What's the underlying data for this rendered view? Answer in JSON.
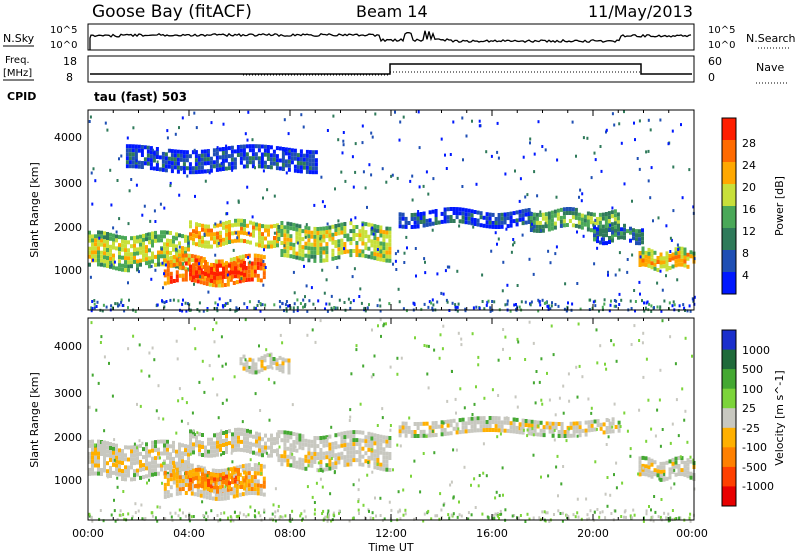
{
  "header": {
    "station": "Goose Bay (fitACF)",
    "beam": "Beam 14",
    "date": "11/May/2013"
  },
  "strips": {
    "nsky_label": "N.Sky",
    "nsky_ticks": [
      "10^5",
      "10^0"
    ],
    "nsearch_label": "N.Search",
    "nsearch_ticks": [
      "10^5",
      "10^0"
    ],
    "freq_label_1": "Freq.",
    "freq_label_2": "[MHz]",
    "freq_ticks": [
      "18",
      "8"
    ],
    "nave_label": "Nave",
    "nave_ticks": [
      "60",
      "0"
    ],
    "cpid_label": "CPID",
    "cpid_value": "tau (fast) 503"
  },
  "colors": {
    "power": [
      "#0018ff",
      "#1f4fb4",
      "#2f7a5a",
      "#4aa858",
      "#c8e03a",
      "#ffa800",
      "#ff6a00",
      "#ff1e00"
    ],
    "velocity": [
      "#1a2fcc",
      "#1f6a3a",
      "#44a832",
      "#7cd43a",
      "#c8c8c0",
      "#ffb000",
      "#ff8000",
      "#ff4000",
      "#e80000"
    ]
  },
  "chart_data": [
    {
      "type": "heatmap",
      "panel": "power",
      "ylabel": "Slant Range [km]",
      "yticks": [
        "1000",
        "2000",
        "3000",
        "4000"
      ],
      "ylim": [
        300,
        4600
      ],
      "xlim": [
        0,
        24
      ],
      "colorbar_label": "Power [dB]",
      "colorbar_ticks": [
        "4",
        "8",
        "12",
        "16",
        "20",
        "24",
        "28"
      ],
      "echo_bands": [
        {
          "t0": 0.0,
          "t1": 4.0,
          "r0": 1250,
          "r1": 1950,
          "level": 4
        },
        {
          "t0": 4.0,
          "t1": 7.5,
          "r0": 1750,
          "r1": 2200,
          "level": 5
        },
        {
          "t0": 7.5,
          "t1": 12.0,
          "r0": 1400,
          "r1": 2150,
          "level": 4
        },
        {
          "t0": 3.0,
          "t1": 7.0,
          "r0": 850,
          "r1": 1450,
          "level": 6
        },
        {
          "t0": 4.0,
          "t1": 6.2,
          "r0": 1000,
          "r1": 1350,
          "level": 7
        },
        {
          "t0": 12.3,
          "t1": 17.5,
          "r0": 2150,
          "r1": 2450,
          "level": 1
        },
        {
          "t0": 17.5,
          "t1": 21.0,
          "r0": 2100,
          "r1": 2450,
          "level": 3
        },
        {
          "t0": 20.0,
          "t1": 22.0,
          "r0": 1800,
          "r1": 2100,
          "level": 2
        },
        {
          "t0": 21.8,
          "t1": 24.0,
          "r0": 1250,
          "r1": 1600,
          "level": 5
        },
        {
          "t0": 1.5,
          "t1": 9.0,
          "r0": 3300,
          "r1": 3800,
          "level": 1
        }
      ]
    },
    {
      "type": "heatmap",
      "panel": "velocity",
      "ylabel": "Slant Range [km]",
      "yticks": [
        "1000",
        "2000",
        "3000",
        "4000"
      ],
      "ylim": [
        300,
        4600
      ],
      "xlim": [
        0,
        24
      ],
      "xlabel": "Time UT",
      "xticks": [
        "00:00",
        "04:00",
        "08:00",
        "12:00",
        "16:00",
        "20:00",
        "00:00"
      ],
      "colorbar_label": "Velocity [m s^-1]",
      "colorbar_ticks": [
        "1000",
        "500",
        "100",
        "25",
        "-25",
        "-100",
        "-500",
        "-1000"
      ],
      "echo_bands": [
        {
          "t0": 0.0,
          "t1": 4.0,
          "r0": 1250,
          "r1": 1950,
          "level": 4
        },
        {
          "t0": 4.0,
          "t1": 7.5,
          "r0": 1750,
          "r1": 2200,
          "level": 4
        },
        {
          "t0": 7.5,
          "t1": 12.0,
          "r0": 1400,
          "r1": 2150,
          "level": 4
        },
        {
          "t0": 3.0,
          "t1": 7.0,
          "r0": 850,
          "r1": 1450,
          "level": 5
        },
        {
          "t0": 4.0,
          "t1": 6.2,
          "r0": 1000,
          "r1": 1350,
          "level": 6
        },
        {
          "t0": 12.3,
          "t1": 21.0,
          "r0": 2150,
          "r1": 2450,
          "level": 4
        },
        {
          "t0": 21.8,
          "t1": 24.0,
          "r0": 1250,
          "r1": 1600,
          "level": 4
        },
        {
          "t0": 6.0,
          "t1": 8.0,
          "r0": 3500,
          "r1": 3800,
          "level": 4
        }
      ]
    },
    {
      "type": "line",
      "panel": "frequency",
      "series": [
        {
          "x": [
            0,
            4.0,
            12.0,
            22.0,
            24.0
          ],
          "values": [
            10.5,
            10.5,
            16.0,
            10.5,
            10.5
          ]
        }
      ]
    }
  ]
}
